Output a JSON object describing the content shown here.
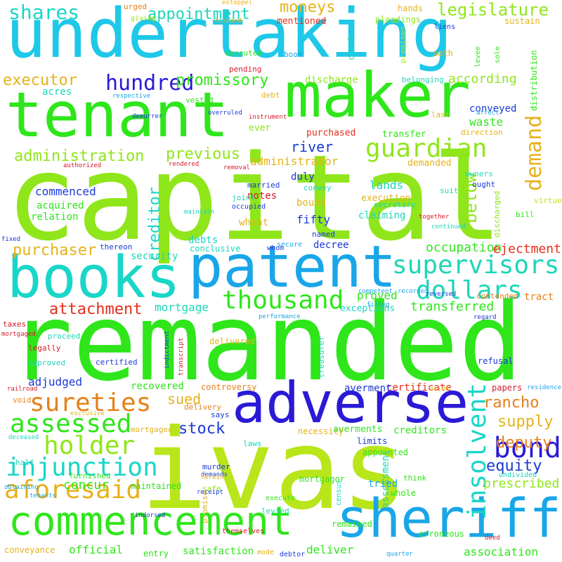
{
  "palette": {
    "cyan": "#1ec8e8",
    "sky": "#19a6e8",
    "lime": "#8fe61a",
    "yellowgreen": "#b8e61a",
    "green": "#2ee61a",
    "teal": "#1ed6b8",
    "aqua": "#19d6c8",
    "blue": "#2a1ad6",
    "royal": "#1a3ad6",
    "orange": "#e6801a",
    "gold": "#e6b21a",
    "red": "#e62e1a",
    "crimson": "#d61a2a"
  },
  "words": [
    {
      "text": "capital",
      "color": "lime"
    },
    {
      "text": "remanded",
      "color": "green"
    },
    {
      "text": "ivas",
      "color": "yellowgreen"
    },
    {
      "text": "undertaking",
      "color": "cyan"
    },
    {
      "text": "tenant",
      "color": "green"
    },
    {
      "text": "maker",
      "color": "green"
    },
    {
      "text": "patent",
      "color": "sky"
    },
    {
      "text": "books",
      "color": "aqua"
    },
    {
      "text": "adverse",
      "color": "blue"
    },
    {
      "text": "commencement",
      "color": "green"
    },
    {
      "text": "sheriff",
      "color": "sky"
    },
    {
      "text": "guardian",
      "color": "lime"
    },
    {
      "text": "supervisors",
      "color": "teal"
    },
    {
      "text": "thousand",
      "color": "green"
    },
    {
      "text": "dollars",
      "color": "teal"
    },
    {
      "text": "sureties",
      "color": "orange"
    },
    {
      "text": "assessed",
      "color": "green"
    },
    {
      "text": "holder",
      "color": "lime"
    },
    {
      "text": "injunction",
      "color": "aqua"
    },
    {
      "text": "aforesaid",
      "color": "gold"
    },
    {
      "text": "bond",
      "color": "blue"
    },
    {
      "text": "insolvent",
      "color": "aqua"
    },
    {
      "text": "demand",
      "color": "gold"
    },
    {
      "text": "hundred",
      "color": "blue"
    },
    {
      "text": "shares",
      "color": "aqua"
    },
    {
      "text": "appointment",
      "color": "teal"
    },
    {
      "text": "legislature",
      "color": "lime"
    },
    {
      "text": "moneys",
      "color": "gold"
    },
    {
      "text": "executor",
      "color": "gold"
    },
    {
      "text": "promissory",
      "color": "green"
    },
    {
      "text": "according",
      "color": "lime"
    },
    {
      "text": "administration",
      "color": "lime"
    },
    {
      "text": "previous",
      "color": "lime"
    },
    {
      "text": "river",
      "color": "royal"
    },
    {
      "text": "purchaser",
      "color": "gold"
    },
    {
      "text": "attachment",
      "color": "red"
    },
    {
      "text": "creditor",
      "color": "aqua"
    },
    {
      "text": "rancho",
      "color": "orange"
    },
    {
      "text": "supply",
      "color": "gold"
    },
    {
      "text": "deputy",
      "color": "orange"
    },
    {
      "text": "equity",
      "color": "royal"
    },
    {
      "text": "stock",
      "color": "royal"
    },
    {
      "text": "concur",
      "color": "green"
    },
    {
      "text": "transferred",
      "color": "green"
    },
    {
      "text": "occupation",
      "color": "green"
    },
    {
      "text": "ejectment",
      "color": "red"
    },
    {
      "text": "prescribed",
      "color": "lime"
    },
    {
      "text": "below",
      "color": "lime"
    },
    {
      "text": "sued",
      "color": "gold"
    },
    {
      "text": "mortgage",
      "color": "teal"
    },
    {
      "text": "commenced",
      "color": "royal"
    },
    {
      "text": "administrator",
      "color": "gold"
    },
    {
      "text": "waste",
      "color": "green"
    },
    {
      "text": "conveyed",
      "color": "royal"
    },
    {
      "text": "adjudged",
      "color": "royal"
    },
    {
      "text": "certificate",
      "color": "red"
    },
    {
      "text": "official",
      "color": "green"
    },
    {
      "text": "assessment",
      "color": "teal"
    },
    {
      "text": "association",
      "color": "green"
    },
    {
      "text": "deliver",
      "color": "green"
    },
    {
      "text": "satisfaction",
      "color": "green"
    },
    {
      "text": "proved",
      "color": "green"
    },
    {
      "text": "fifty",
      "color": "royal"
    },
    {
      "text": "debts",
      "color": "aqua"
    },
    {
      "text": "security",
      "color": "teal"
    },
    {
      "text": "recovered",
      "color": "green"
    },
    {
      "text": "lands",
      "color": "teal"
    },
    {
      "text": "bound",
      "color": "gold"
    },
    {
      "text": "notes",
      "color": "crimson"
    },
    {
      "text": "duly",
      "color": "royal"
    },
    {
      "text": "decree",
      "color": "royal"
    },
    {
      "text": "tract",
      "color": "orange"
    },
    {
      "text": "relation",
      "color": "green"
    },
    {
      "text": "acquired",
      "color": "green"
    },
    {
      "text": "acres",
      "color": "teal"
    },
    {
      "text": "wheat",
      "color": "gold"
    },
    {
      "text": "claiming",
      "color": "teal"
    },
    {
      "text": "exceptions",
      "color": "aqua"
    },
    {
      "text": "creditors",
      "color": "green"
    },
    {
      "text": "averments",
      "color": "green"
    },
    {
      "text": "averment",
      "color": "royal"
    },
    {
      "text": "tried",
      "color": "sky"
    },
    {
      "text": "controversy",
      "color": "orange"
    },
    {
      "text": "mentioned",
      "color": "red"
    },
    {
      "text": "discharge",
      "color": "lime"
    },
    {
      "text": "purchased",
      "color": "red"
    },
    {
      "text": "ever",
      "color": "lime"
    },
    {
      "text": "transfer",
      "color": "green"
    },
    {
      "text": "demanded",
      "color": "gold"
    },
    {
      "text": "execution",
      "color": "gold"
    },
    {
      "text": "appointed",
      "color": "green"
    },
    {
      "text": "necessity",
      "color": "gold"
    },
    {
      "text": "limits",
      "color": "royal"
    },
    {
      "text": "maintained",
      "color": "green"
    },
    {
      "text": "whole",
      "color": "green"
    },
    {
      "text": "remained",
      "color": "green"
    },
    {
      "text": "erroneous",
      "color": "green"
    },
    {
      "text": "conveyance",
      "color": "gold"
    },
    {
      "text": "entry",
      "color": "green"
    },
    {
      "text": "mortgagor",
      "color": "green"
    },
    {
      "text": "promise",
      "color": "gold"
    },
    {
      "text": "refusal",
      "color": "royal"
    },
    {
      "text": "papers",
      "color": "crimson"
    },
    {
      "text": "delivered",
      "color": "gold"
    },
    {
      "text": "conclusive",
      "color": "teal"
    },
    {
      "text": "sustain",
      "color": "gold"
    },
    {
      "text": "hands",
      "color": "gold"
    },
    {
      "text": "pleadings",
      "color": "lime"
    },
    {
      "text": "distribution",
      "color": "green"
    },
    {
      "text": "premises",
      "color": "yellowgreen"
    },
    {
      "text": "belonging",
      "color": "teal"
    },
    {
      "text": "clerk",
      "color": "teal"
    },
    {
      "text": "executed",
      "color": "green"
    },
    {
      "text": "book",
      "color": "sky"
    },
    {
      "text": "oath",
      "color": "gold"
    },
    {
      "text": "debt",
      "color": "gold"
    },
    {
      "text": "pending",
      "color": "crimson"
    },
    {
      "text": "vested",
      "color": "green"
    },
    {
      "text": "last",
      "color": "gold"
    },
    {
      "text": "direction",
      "color": "gold"
    },
    {
      "text": "owners",
      "color": "teal"
    },
    {
      "text": "ought",
      "color": "royal"
    },
    {
      "text": "married",
      "color": "royal"
    },
    {
      "text": "joint",
      "color": "teal"
    },
    {
      "text": "convey",
      "color": "teal"
    },
    {
      "text": "secretary",
      "color": "teal"
    },
    {
      "text": "suit",
      "color": "teal"
    },
    {
      "text": "named",
      "color": "royal"
    },
    {
      "text": "discharged",
      "color": "lime"
    },
    {
      "text": "bill",
      "color": "green"
    },
    {
      "text": "virtue",
      "color": "yellowgreen"
    },
    {
      "text": "contended",
      "color": "orange"
    },
    {
      "text": "undivided",
      "color": "teal"
    },
    {
      "text": "think",
      "color": "green"
    },
    {
      "text": "proceed",
      "color": "teal"
    },
    {
      "text": "taxes",
      "color": "crimson"
    },
    {
      "text": "legally",
      "color": "crimson"
    },
    {
      "text": "approved",
      "color": "teal"
    },
    {
      "text": "certified",
      "color": "royal"
    },
    {
      "text": "void",
      "color": "orange"
    },
    {
      "text": "half",
      "color": "teal"
    },
    {
      "text": "furnished",
      "color": "green"
    },
    {
      "text": "murder",
      "color": "royal"
    },
    {
      "text": "laws",
      "color": "teal"
    },
    {
      "text": "says",
      "color": "royal"
    },
    {
      "text": "delivery",
      "color": "orange"
    },
    {
      "text": "safe",
      "color": "lime"
    },
    {
      "text": "levied",
      "color": "teal"
    },
    {
      "text": "treasurer",
      "color": "aqua"
    },
    {
      "text": "census",
      "color": "aqua"
    },
    {
      "text": "execute",
      "color": "green"
    },
    {
      "text": "occupied",
      "color": "royal"
    },
    {
      "text": "whom",
      "color": "royal"
    },
    {
      "text": "thereon",
      "color": "royal"
    },
    {
      "text": "urged",
      "color": "orange"
    },
    {
      "text": "giving",
      "color": "lime"
    },
    {
      "text": "estoppel",
      "color": "gold"
    },
    {
      "text": "husband",
      "color": "gold"
    },
    {
      "text": "liens",
      "color": "royal"
    },
    {
      "text": "levee",
      "color": "green"
    },
    {
      "text": "sole",
      "color": "green"
    },
    {
      "text": "respective",
      "color": "sky"
    },
    {
      "text": "affect",
      "color": "sky"
    },
    {
      "text": "instrument",
      "color": "crimson"
    },
    {
      "text": "demurrer",
      "color": "royal"
    },
    {
      "text": "overruled",
      "color": "royal"
    },
    {
      "text": "rendered",
      "color": "crimson"
    },
    {
      "text": "removal",
      "color": "crimson"
    },
    {
      "text": "authorized",
      "color": "crimson"
    },
    {
      "text": "maintain",
      "color": "teal"
    },
    {
      "text": "together",
      "color": "crimson"
    },
    {
      "text": "continued",
      "color": "teal"
    },
    {
      "text": "fixed",
      "color": "royal"
    },
    {
      "text": "secure",
      "color": "sky"
    },
    {
      "text": "competent",
      "color": "sky"
    },
    {
      "text": "recorded",
      "color": "sky"
    },
    {
      "text": "filing",
      "color": "sky"
    },
    {
      "text": "reversed",
      "color": "royal"
    },
    {
      "text": "regard",
      "color": "royal"
    },
    {
      "text": "performance",
      "color": "sky"
    },
    {
      "text": "mortgaged",
      "color": "crimson"
    },
    {
      "text": "indictment",
      "color": "royal"
    },
    {
      "text": "transcript",
      "color": "crimson"
    },
    {
      "text": "railroad",
      "color": "crimson"
    },
    {
      "text": "exclusive",
      "color": "gold"
    },
    {
      "text": "deceased",
      "color": "teal"
    },
    {
      "text": "mortgagee",
      "color": "gold"
    },
    {
      "text": "demands",
      "color": "royal"
    },
    {
      "text": "herein",
      "color": "gold"
    },
    {
      "text": "receipt",
      "color": "royal"
    },
    {
      "text": "obtaining",
      "color": "sky"
    },
    {
      "text": "tenants",
      "color": "sky"
    },
    {
      "text": "indorsed",
      "color": "royal"
    },
    {
      "text": "themselves",
      "color": "crimson"
    },
    {
      "text": "mode",
      "color": "gold"
    },
    {
      "text": "debtor",
      "color": "royal"
    },
    {
      "text": "quarter",
      "color": "sky"
    },
    {
      "text": "deed",
      "color": "crimson"
    },
    {
      "text": "residence",
      "color": "sky"
    },
    {
      "text": "aside",
      "color": "gold"
    }
  ]
}
